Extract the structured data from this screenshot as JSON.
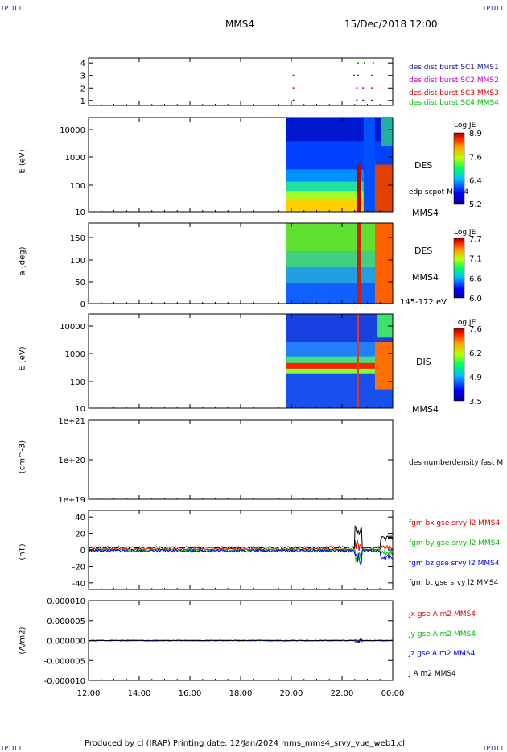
{
  "corners": {
    "tl": "IPDLI",
    "tr": "IPDLI",
    "bl": "IPDLI",
    "br": "IPDLI"
  },
  "header": {
    "spacecraft": "MMS4",
    "datetime": "15/Dec/2018 12:00"
  },
  "footer": {
    "text": "Produced by cl (IRAP)   Printing date: 12/Jan/2024   mms_mms4_srvy_vue_web1.cl"
  },
  "chart_data": {
    "type": "multi-panel",
    "x_tick_labels": [
      "12:00",
      "14:00",
      "16:00",
      "18:00",
      "20:00",
      "22:00",
      "00:00"
    ],
    "x_hours": [
      12,
      14,
      16,
      18,
      20,
      22,
      24
    ],
    "panels": [
      {
        "id": "burst",
        "type": "scatter",
        "ylim": [
          0.6,
          4.4
        ],
        "y_tick_labels": [
          "1",
          "2",
          "3",
          "4"
        ],
        "series": [
          {
            "name": "des dist burst SC1 MMS1",
            "color": "#1a1aa0",
            "y": 1,
            "x": [
              20.05,
              22.55,
              22.8,
              23.15
            ]
          },
          {
            "name": "des dist burst SC2 MMS2",
            "color": "#cc00cc",
            "y": 2,
            "x": [
              20.05,
              22.55,
              22.8,
              23.15
            ]
          },
          {
            "name": "des dist burst SC3 MMS3",
            "color": "#dd0000",
            "y": 3,
            "x": [
              20.05,
              22.45,
              22.6,
              23.15
            ]
          },
          {
            "name": "des dist burst SC4 MMS4",
            "color": "#00bb00",
            "y": 4,
            "x": [
              22.6,
              22.85,
              23.2
            ]
          }
        ]
      },
      {
        "id": "des_energy",
        "type": "heatmap",
        "ylabel": "E (eV)",
        "ylog": true,
        "ylim": [
          10,
          20000
        ],
        "y_tick_labels": [
          "10000",
          "1000",
          "100",
          "10"
        ],
        "label": "DES",
        "line_label": "edp scpot MMS4",
        "right_label": "MMS4",
        "colorbar": {
          "title": "Log JE",
          "ticks": [
            "8.9",
            "7.6",
            "6.4",
            "5.2"
          ]
        }
      },
      {
        "id": "des_pitch",
        "type": "heatmap",
        "ylabel": "a (deg)",
        "ylim": [
          0,
          180
        ],
        "y_tick_labels": [
          "150",
          "100",
          "50",
          "0"
        ],
        "label": "DES",
        "right_label": "MMS4",
        "energy_label": "145-172 eV",
        "colorbar": {
          "title": "Log JE",
          "ticks": [
            "7.7",
            "7.1",
            "6.6",
            "6.0"
          ]
        }
      },
      {
        "id": "dis_energy",
        "type": "heatmap",
        "ylabel": "E (eV)",
        "ylog": true,
        "ylim": [
          10,
          20000
        ],
        "y_tick_labels": [
          "10000",
          "1000",
          "100",
          "10"
        ],
        "label": "DIS",
        "right_label": "MMS4",
        "colorbar": {
          "title": "Log JE",
          "ticks": [
            "7.6",
            "6.2",
            "4.9",
            "3.5"
          ]
        }
      },
      {
        "id": "density",
        "type": "line",
        "ylabel": "(cm^-3)",
        "ylog": true,
        "y_tick_labels": [
          "1e+21",
          "1e+20",
          "1e+19"
        ],
        "series": [
          {
            "name": "des numberdensity fast M",
            "color": "#000000"
          }
        ]
      },
      {
        "id": "fgm",
        "type": "line",
        "ylabel": "(nT)",
        "ylim": [
          -48,
          48
        ],
        "y_tick_labels": [
          "40",
          "20",
          "0",
          "-20",
          "-40"
        ],
        "series": [
          {
            "name": "fgm bx gse srvy l2 MMS4",
            "color": "#dd0000"
          },
          {
            "name": "fgm by gse srvy l2 MMS4",
            "color": "#00bb00"
          },
          {
            "name": "fgm bz gse srvy l2 MMS4",
            "color": "#0000ee"
          },
          {
            "name": "fgm bt gse srvy l2 MMS4",
            "color": "#000000"
          }
        ]
      },
      {
        "id": "current",
        "type": "line",
        "ylabel": "(A/m2)",
        "ylim": [
          -1e-05,
          1e-05
        ],
        "y_tick_labels": [
          "0.000010",
          "0.000005",
          "0.000000",
          "-0.000005",
          "-0.000010"
        ],
        "series": [
          {
            "name": "Jx gse A m2 MMS4",
            "color": "#dd0000"
          },
          {
            "name": "Jy gse A m2 MMS4",
            "color": "#00bb00"
          },
          {
            "name": "Jz gse A m2 MMS4",
            "color": "#0000ee"
          },
          {
            "name": "J A m2 MMS4",
            "color": "#000000"
          }
        ]
      }
    ]
  }
}
